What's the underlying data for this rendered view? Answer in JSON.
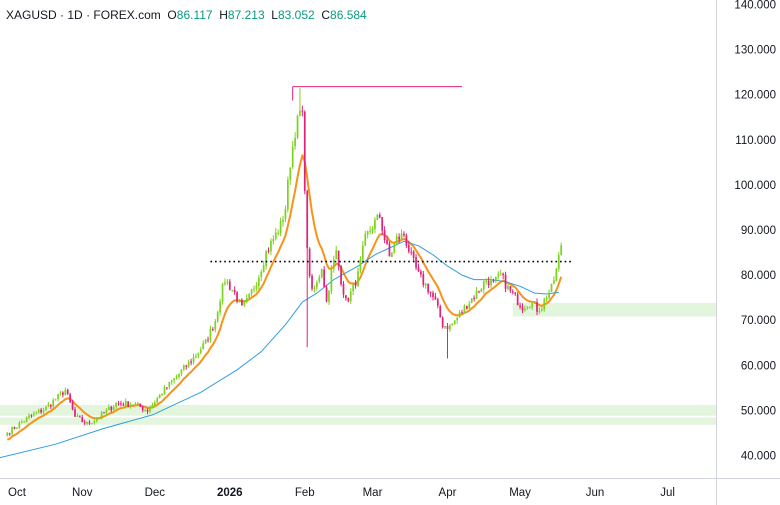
{
  "header": {
    "symbol": "XAGUSD",
    "sep1": "·",
    "interval": "1D",
    "sep2": "·",
    "source": "FOREX.com",
    "o_label": "O",
    "o_value": "86.117",
    "h_label": "H",
    "h_value": "87.213",
    "l_label": "L",
    "l_value": "83.052",
    "c_label": "C",
    "c_value": "86.584"
  },
  "chart_data": {
    "type": "candlestick",
    "ylim": [
      35,
      141
    ],
    "y_ticks": [
      "140.000",
      "130.000",
      "120.000",
      "110.000",
      "100.000",
      "90.000",
      "80.000",
      "70.000",
      "60.000",
      "50.000",
      "40.000"
    ],
    "x_labels": [
      {
        "label": "Oct",
        "day": 0,
        "bold": false
      },
      {
        "label": "Nov",
        "day": 31,
        "bold": false
      },
      {
        "label": "Dec",
        "day": 61,
        "bold": false
      },
      {
        "label": "2026",
        "day": 92,
        "bold": true
      },
      {
        "label": "Feb",
        "day": 123,
        "bold": false
      },
      {
        "label": "Mar",
        "day": 151,
        "bold": false
      },
      {
        "label": "Apr",
        "day": 182,
        "bold": false
      },
      {
        "label": "May",
        "day": 212,
        "bold": false
      },
      {
        "label": "Jun",
        "day": 243,
        "bold": false
      },
      {
        "label": "Jul",
        "day": 273,
        "bold": false
      }
    ],
    "x_range_days": [
      -3,
      293
    ],
    "colors": {
      "up": "#7ed321",
      "down": "#e0227b",
      "ma_fast": "#f7931a",
      "ma_slow": "#2f9fe0",
      "zone": "#e3f5dc",
      "dotted": "#000000",
      "peak_line": "#e0227b"
    },
    "resistance_level": 83,
    "resistance_start_day": 84,
    "resistance_end_day": 233,
    "peak_level": 121.8,
    "peak_start_day": 118,
    "peak_end_day": 188,
    "zones": [
      {
        "low": 70.8,
        "high": 73.8,
        "start_day": 209
      },
      {
        "low": 48.8,
        "high": 51.2,
        "start_day": -3
      },
      {
        "low": 46.8,
        "high": 48.4,
        "start_day": -3
      }
    ],
    "anchors": [
      [
        0,
        45.0
      ],
      [
        9,
        48.5
      ],
      [
        16,
        50.5
      ],
      [
        20,
        52.5
      ],
      [
        24,
        54.5
      ],
      [
        28,
        48.5
      ],
      [
        33,
        47.0
      ],
      [
        38,
        48.5
      ],
      [
        45,
        51.5
      ],
      [
        52,
        51.5
      ],
      [
        58,
        50.0
      ],
      [
        64,
        54.0
      ],
      [
        70,
        57.5
      ],
      [
        76,
        61.0
      ],
      [
        82,
        65.0
      ],
      [
        86,
        70.0
      ],
      [
        88,
        75.0
      ],
      [
        90,
        79.0
      ],
      [
        94,
        76.0
      ],
      [
        97,
        72.5
      ],
      [
        100,
        75.0
      ],
      [
        104,
        80.0
      ],
      [
        107,
        85.0
      ],
      [
        110,
        88.0
      ],
      [
        113,
        91.0
      ],
      [
        115,
        95.0
      ],
      [
        117,
        105.0
      ],
      [
        119,
        112.0
      ],
      [
        121,
        116.0
      ],
      [
        122,
        115.0
      ],
      [
        124,
        85.0
      ],
      [
        126,
        76.0
      ],
      [
        128,
        78.0
      ],
      [
        130,
        82.0
      ],
      [
        132,
        74.0
      ],
      [
        134,
        81.0
      ],
      [
        136,
        85.0
      ],
      [
        138,
        79.0
      ],
      [
        140,
        74.0
      ],
      [
        142,
        76.0
      ],
      [
        145,
        80.0
      ],
      [
        148,
        88.0
      ],
      [
        151,
        91.0
      ],
      [
        154,
        93.0
      ],
      [
        156,
        88.0
      ],
      [
        158,
        84.0
      ],
      [
        161,
        88.0
      ],
      [
        164,
        89.0
      ],
      [
        167,
        84.0
      ],
      [
        170,
        80.0
      ],
      [
        174,
        77.0
      ],
      [
        177,
        74.0
      ],
      [
        180,
        69.0
      ],
      [
        183,
        68.5
      ],
      [
        186,
        70.5
      ],
      [
        190,
        73.5
      ],
      [
        194,
        76.0
      ],
      [
        198,
        79.0
      ],
      [
        201,
        78.0
      ],
      [
        204,
        80.0
      ],
      [
        207,
        77.0
      ],
      [
        210,
        75.0
      ],
      [
        213,
        73.0
      ],
      [
        216,
        74.0
      ],
      [
        219,
        72.5
      ],
      [
        221,
        73.0
      ],
      [
        223,
        75.5
      ],
      [
        225,
        77.0
      ],
      [
        227,
        81.0
      ],
      [
        229,
        86.6
      ]
    ],
    "ma_slow_points": [
      [
        -3,
        39.5
      ],
      [
        20,
        42.5
      ],
      [
        40,
        46.0
      ],
      [
        60,
        49.0
      ],
      [
        80,
        54.0
      ],
      [
        95,
        59.0
      ],
      [
        105,
        63.0
      ],
      [
        115,
        69.0
      ],
      [
        122,
        74.0
      ],
      [
        128,
        76.0
      ],
      [
        135,
        79.0
      ],
      [
        145,
        82.0
      ],
      [
        152,
        84.5
      ],
      [
        158,
        86.0
      ],
      [
        164,
        87.5
      ],
      [
        170,
        86.5
      ],
      [
        176,
        84.5
      ],
      [
        182,
        82.0
      ],
      [
        188,
        80.0
      ],
      [
        193,
        79.0
      ],
      [
        200,
        79.0
      ],
      [
        206,
        78.5
      ],
      [
        212,
        77.5
      ],
      [
        218,
        76.0
      ],
      [
        223,
        75.8
      ],
      [
        228,
        76.2
      ]
    ]
  }
}
